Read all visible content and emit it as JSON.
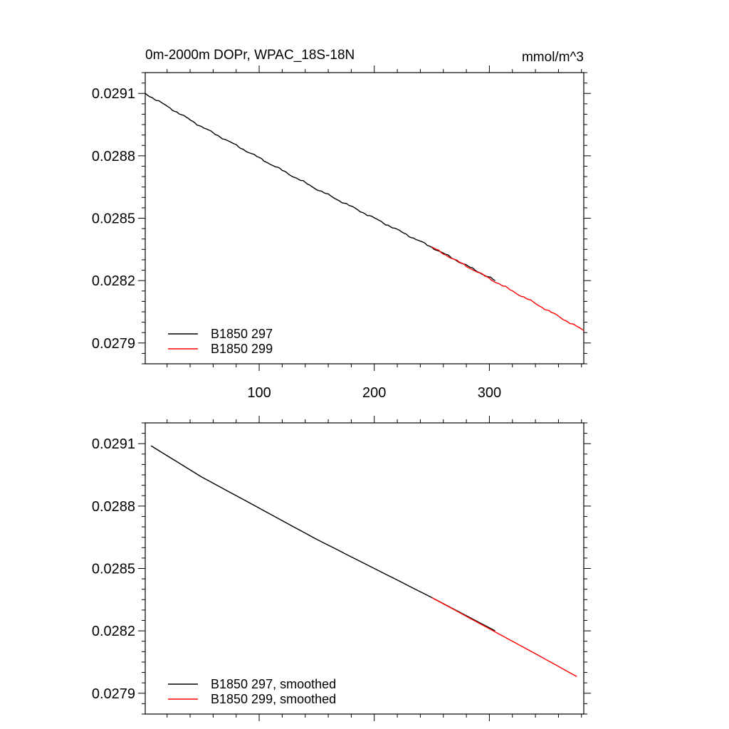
{
  "title": "0m-2000m DOPr, WPAC_18S-18N",
  "units": "mmol/m^3",
  "colors": {
    "run297": "#000000",
    "run299": "#ff0000",
    "axis": "#000000"
  },
  "chart_data": [
    {
      "type": "line",
      "xlim": [
        1,
        382
      ],
      "ylim": [
        0.0278,
        0.0292
      ],
      "xticks": [
        "100",
        "200",
        "300"
      ],
      "yticks": [
        "0.0291",
        "0.0288",
        "0.0285",
        "0.0282",
        "0.0279"
      ],
      "show_x_tick_labels": true,
      "legend_position": "bottom-left",
      "series": [
        {
          "name": "B1850 297",
          "color": "#000000",
          "x": [
            1,
            50,
            100,
            150,
            200,
            250,
            305
          ],
          "y": [
            0.0291,
            0.02894,
            0.02879,
            0.02864,
            0.0285,
            0.02836,
            0.0282
          ]
        },
        {
          "name": "B1850 299",
          "color": "#ff0000",
          "x": [
            250,
            280,
            310,
            340,
            382
          ],
          "y": [
            0.02836,
            0.02827,
            0.02818,
            0.02809,
            0.02796
          ]
        }
      ]
    },
    {
      "type": "line",
      "xlim": [
        1,
        382
      ],
      "ylim": [
        0.0278,
        0.0292
      ],
      "xticks": [
        "100",
        "200",
        "300"
      ],
      "yticks": [
        "0.0291",
        "0.0288",
        "0.0285",
        "0.0282",
        "0.0279"
      ],
      "show_x_tick_labels": false,
      "legend_position": "bottom-left",
      "series": [
        {
          "name": "B1850 297, smoothed",
          "color": "#000000",
          "x": [
            6,
            50,
            100,
            150,
            200,
            250,
            305
          ],
          "y": [
            0.02909,
            0.02894,
            0.02879,
            0.02864,
            0.0285,
            0.02836,
            0.0282
          ]
        },
        {
          "name": "B1850 299, smoothed",
          "color": "#ff0000",
          "x": [
            250,
            280,
            310,
            340,
            376
          ],
          "y": [
            0.02836,
            0.02827,
            0.02818,
            0.02809,
            0.02798
          ]
        }
      ]
    }
  ]
}
